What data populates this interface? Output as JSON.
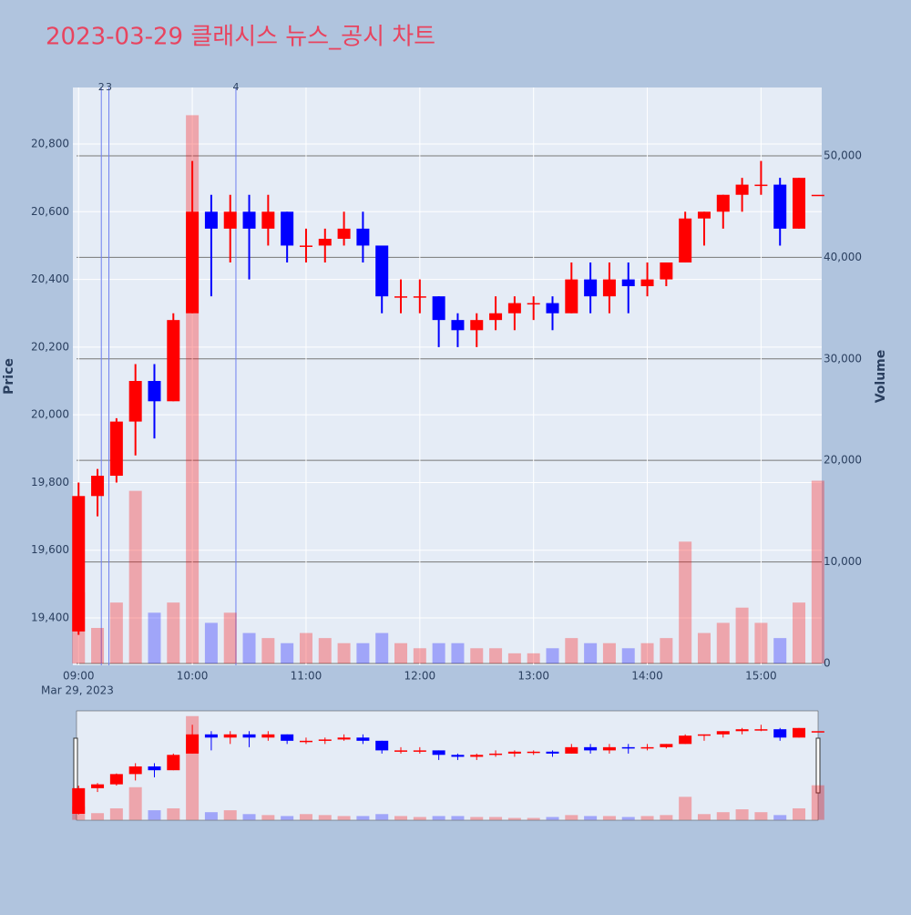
{
  "chart_data": {
    "type": "candlestick",
    "title": "2023-03-29 클래시스 뉴스_공시 차트",
    "y_title": "Price",
    "y2_title": "Volume",
    "x_date_label": "Mar 29, 2023",
    "up_color": "#ff0000",
    "down_color": "#0000ff",
    "x": [
      "2023-03-29 09:00",
      "2023-03-29 09:10",
      "2023-03-29 09:20",
      "2023-03-29 09:30",
      "2023-03-29 09:40",
      "2023-03-29 09:50",
      "2023-03-29 10:00",
      "2023-03-29 10:10",
      "2023-03-29 10:20",
      "2023-03-29 10:30",
      "2023-03-29 10:40",
      "2023-03-29 10:50",
      "2023-03-29 11:00",
      "2023-03-29 11:10",
      "2023-03-29 11:20",
      "2023-03-29 11:30",
      "2023-03-29 11:40",
      "2023-03-29 11:50",
      "2023-03-29 12:00",
      "2023-03-29 12:10",
      "2023-03-29 12:20",
      "2023-03-29 12:30",
      "2023-03-29 12:40",
      "2023-03-29 12:50",
      "2023-03-29 13:00",
      "2023-03-29 13:10",
      "2023-03-29 13:20",
      "2023-03-29 13:30",
      "2023-03-29 13:40",
      "2023-03-29 13:50",
      "2023-03-29 14:00",
      "2023-03-29 14:10",
      "2023-03-29 14:20",
      "2023-03-29 14:30",
      "2023-03-29 14:40",
      "2023-03-29 14:50",
      "2023-03-29 15:00",
      "2023-03-29 15:10",
      "2023-03-29 15:20",
      "2023-03-29 15:30"
    ],
    "open": [
      19360,
      19760,
      19820,
      19980,
      20100,
      20040,
      20300,
      20600,
      20550,
      20600,
      20550,
      20600,
      20500,
      20500,
      20520,
      20550,
      20500,
      20350,
      20350,
      20350,
      20280,
      20250,
      20280,
      20300,
      20330,
      20330,
      20300,
      20400,
      20350,
      20400,
      20380,
      20400,
      20450,
      20580,
      20600,
      20650,
      20680,
      20680,
      20550,
      20650
    ],
    "high": [
      19800,
      19840,
      19990,
      20150,
      20150,
      20300,
      20750,
      20650,
      20650,
      20650,
      20650,
      20600,
      20550,
      20550,
      20600,
      20600,
      20500,
      20400,
      20400,
      20350,
      20300,
      20300,
      20350,
      20350,
      20350,
      20350,
      20450,
      20450,
      20450,
      20450,
      20450,
      20450,
      20600,
      20600,
      20650,
      20700,
      20750,
      20700,
      20700,
      20650
    ],
    "low": [
      19350,
      19700,
      19800,
      19880,
      19930,
      20040,
      20300,
      20350,
      20450,
      20400,
      20500,
      20450,
      20450,
      20450,
      20500,
      20450,
      20300,
      20300,
      20300,
      20200,
      20200,
      20200,
      20250,
      20250,
      20280,
      20250,
      20300,
      20300,
      20300,
      20300,
      20350,
      20380,
      20450,
      20500,
      20550,
      20600,
      20650,
      20500,
      20550,
      20650
    ],
    "close": [
      19760,
      19820,
      19980,
      20100,
      20040,
      20280,
      20600,
      20550,
      20600,
      20550,
      20600,
      20500,
      20500,
      20520,
      20550,
      20500,
      20350,
      20350,
      20350,
      20280,
      20250,
      20280,
      20300,
      20330,
      20330,
      20300,
      20400,
      20350,
      20400,
      20380,
      20400,
      20450,
      20580,
      20600,
      20650,
      20680,
      20680,
      20550,
      20700,
      20650
    ],
    "volume": [
      7000,
      3500,
      6000,
      17000,
      5000,
      6000,
      54000,
      4000,
      5000,
      3000,
      2500,
      2000,
      3000,
      2500,
      2000,
      2000,
      3000,
      2000,
      1500,
      2000,
      2000,
      1500,
      1500,
      1000,
      1000,
      1500,
      2500,
      2000,
      2000,
      1500,
      2000,
      2500,
      12000,
      3000,
      4000,
      5500,
      4000,
      2500,
      6000,
      18000
    ],
    "annotations": [
      {
        "x": "2023-03-29 09:12",
        "label": "2"
      },
      {
        "x": "2023-03-29 09:16",
        "label": "3"
      },
      {
        "x": "2023-03-29 10:23",
        "label": "4"
      }
    ],
    "xlim": [
      "2023-03-29 08:57",
      "2023-03-29 15:32"
    ],
    "xticks": [
      {
        "value": "2023-03-29 09:00",
        "label": "09:00"
      },
      {
        "value": "2023-03-29 10:00",
        "label": "10:00"
      },
      {
        "value": "2023-03-29 11:00",
        "label": "11:00"
      },
      {
        "value": "2023-03-29 12:00",
        "label": "12:00"
      },
      {
        "value": "2023-03-29 13:00",
        "label": "13:00"
      },
      {
        "value": "2023-03-29 14:00",
        "label": "14:00"
      },
      {
        "value": "2023-03-29 15:00",
        "label": "15:00"
      }
    ],
    "ylim": [
      19260,
      20967
    ],
    "yticks": [
      {
        "value": 19400,
        "label": "19,400"
      },
      {
        "value": 19600,
        "label": "19,600"
      },
      {
        "value": 19800,
        "label": "19,800"
      },
      {
        "value": 20000,
        "label": "20,000"
      },
      {
        "value": 20200,
        "label": "20,200"
      },
      {
        "value": 20400,
        "label": "20,400"
      },
      {
        "value": 20600,
        "label": "20,600"
      },
      {
        "value": 20800,
        "label": "20,800"
      }
    ],
    "y2lim": [
      -180,
      56730
    ],
    "y2ticks": [
      0,
      {
        "value": 10000,
        "label": "10,000"
      },
      {
        "value": 20000,
        "label": "20,000"
      },
      {
        "value": 30000,
        "label": "30,000"
      },
      {
        "value": 40000,
        "label": "40,000"
      },
      {
        "value": 50000,
        "label": "50,000"
      }
    ],
    "grid": true,
    "rangeslider": true
  }
}
